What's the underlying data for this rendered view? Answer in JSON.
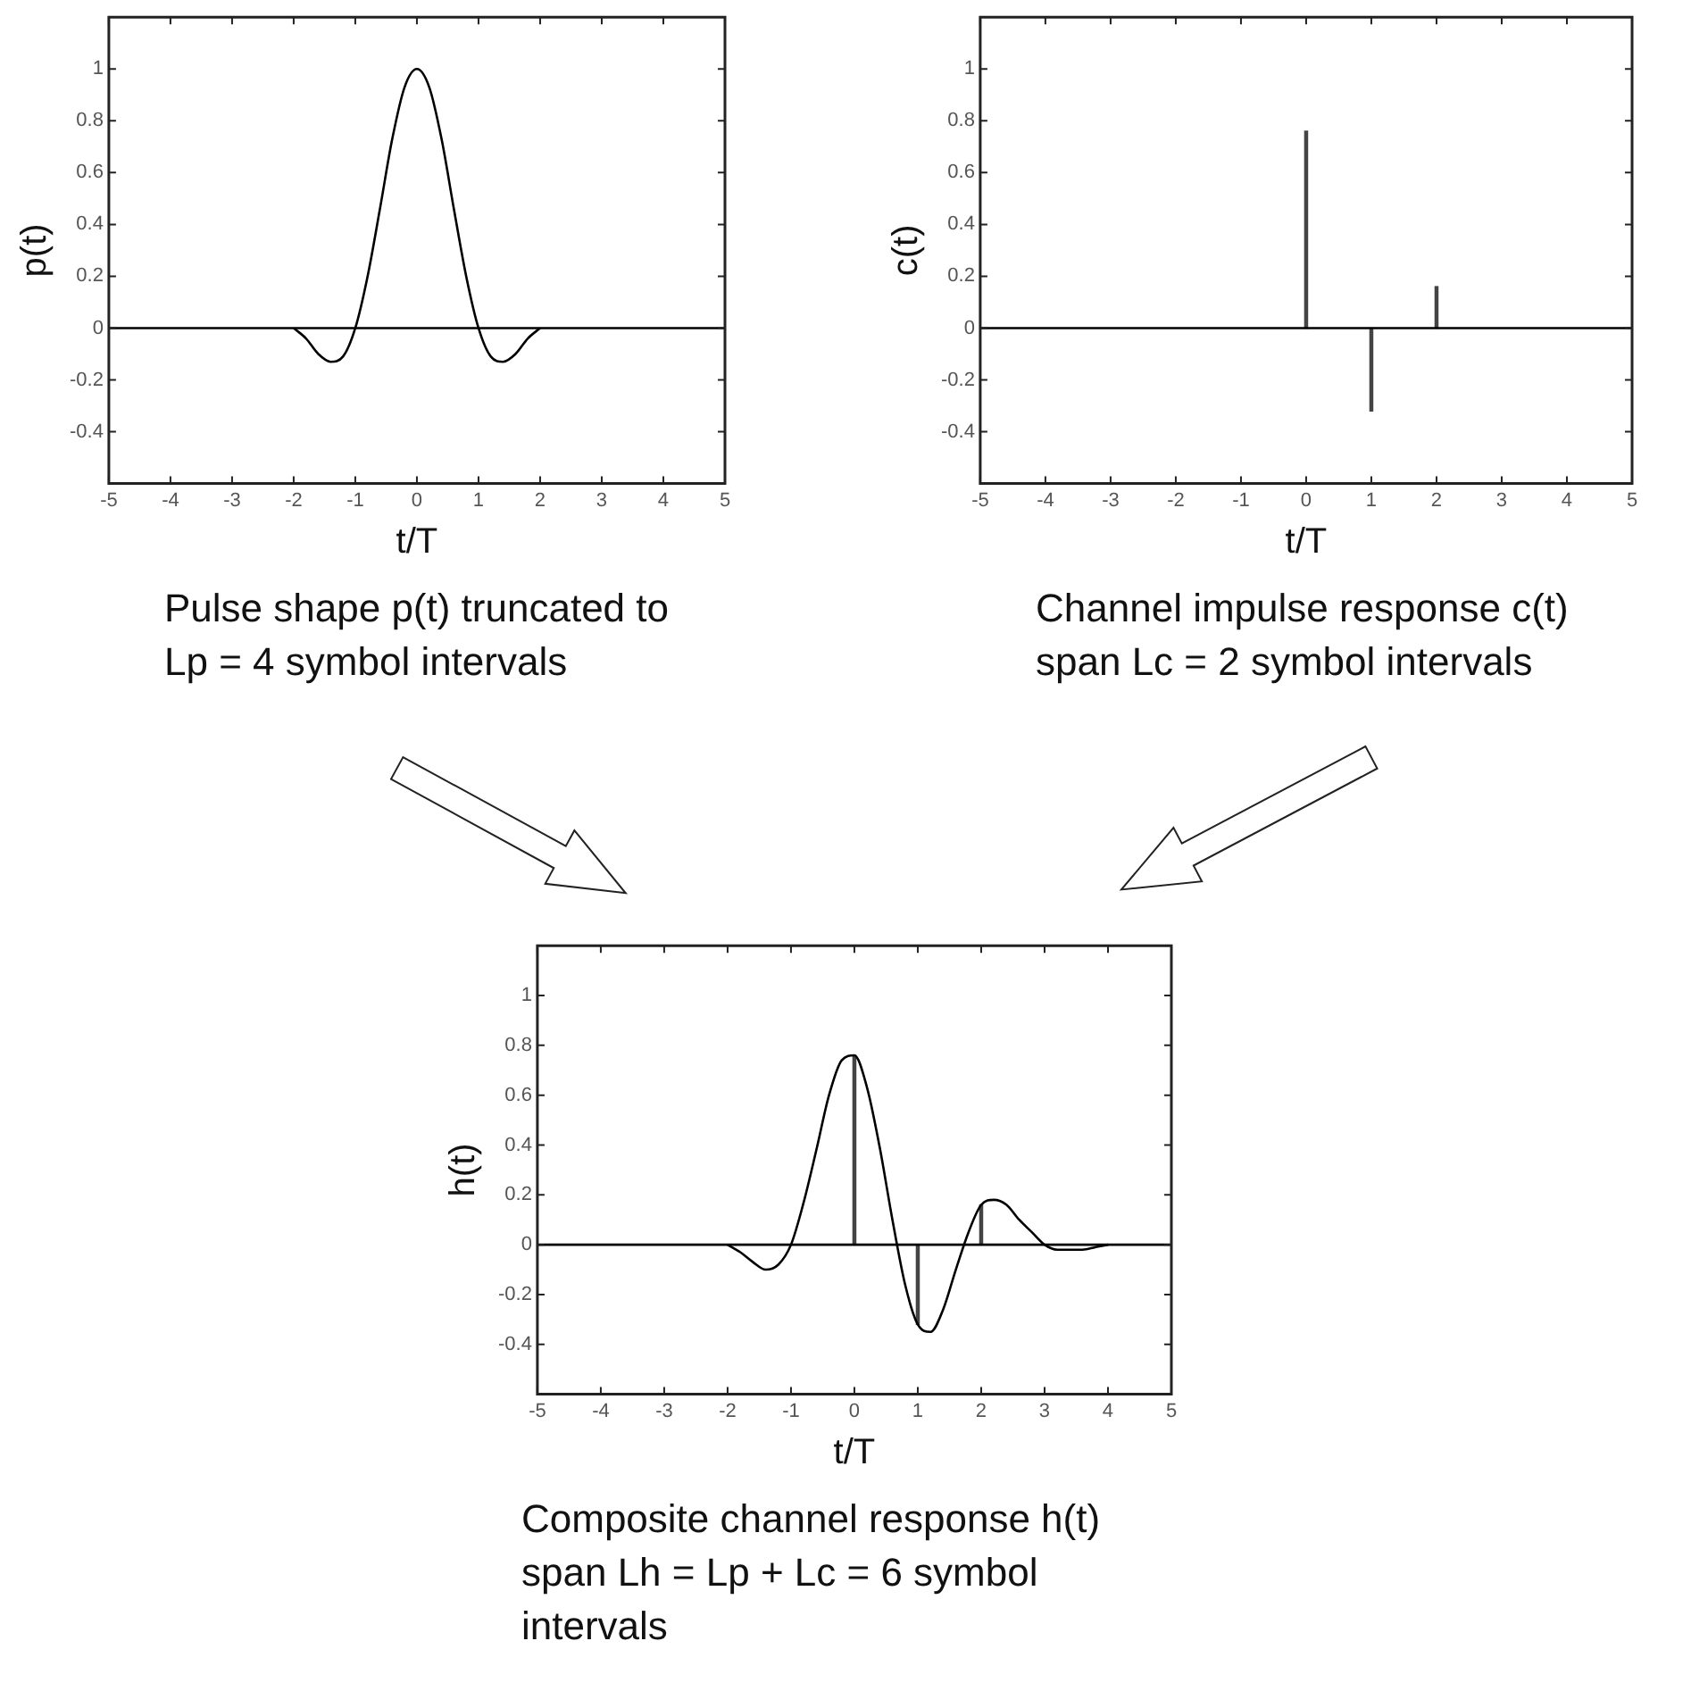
{
  "chart_data": [
    {
      "type": "line",
      "xlabel": "t/T",
      "ylabel": "p(t)",
      "xlim": [
        -5,
        5
      ],
      "xticks": [
        -5,
        -4,
        -3,
        -2,
        -1,
        0,
        1,
        2,
        3,
        4,
        5
      ],
      "ylim": [
        -0.6,
        1.2
      ],
      "yticks": [
        -0.4,
        -0.2,
        0,
        0.2,
        0.4,
        0.6,
        0.8,
        1
      ],
      "grid": false,
      "legend": false,
      "marker": "none",
      "series": [
        {
          "color": "#000000",
          "x": [
            -2,
            -1.8,
            -1.6,
            -1.4,
            -1.2,
            -1,
            -0.8,
            -0.6,
            -0.4,
            -0.2,
            0,
            0.2,
            0.4,
            0.6,
            0.8,
            1,
            1.2,
            1.4,
            1.6,
            1.8,
            2
          ],
          "values": [
            0,
            -0.04,
            -0.1,
            -0.13,
            -0.11,
            0,
            0.2,
            0.46,
            0.73,
            0.93,
            1,
            0.93,
            0.73,
            0.46,
            0.2,
            0,
            -0.11,
            -0.13,
            -0.1,
            -0.04,
            0
          ]
        }
      ],
      "ref_lines": [
        {
          "axis": "y",
          "value": 0,
          "color": "#000000"
        }
      ],
      "annotations": [
        "Pulse shape p(t) truncated to Lp = 4 symbol intervals"
      ]
    },
    {
      "type": "bar",
      "xlabel": "t/T",
      "ylabel": "c(t)",
      "xlim": [
        -5,
        5
      ],
      "xticks": [
        -5,
        -4,
        -3,
        -2,
        -1,
        0,
        1,
        2,
        3,
        4,
        5
      ],
      "ylim": [
        -0.6,
        1.2
      ],
      "yticks": [
        -0.4,
        -0.2,
        0,
        0.2,
        0.4,
        0.6,
        0.8,
        1
      ],
      "grid": false,
      "legend": false,
      "series": [
        {
          "color": "#444444",
          "x": [
            0,
            1,
            2
          ],
          "values": [
            0.76,
            -0.32,
            0.16
          ]
        }
      ],
      "ref_lines": [
        {
          "axis": "y",
          "value": 0,
          "color": "#000000"
        }
      ],
      "annotations": [
        "Channel impulse response c(t) span Lc = 2 symbol intervals"
      ]
    },
    {
      "type": "line",
      "xlabel": "t/T",
      "ylabel": "h(t)",
      "xlim": [
        -5,
        5
      ],
      "xticks": [
        -5,
        -4,
        -3,
        -2,
        -1,
        0,
        1,
        2,
        3,
        4,
        5
      ],
      "ylim": [
        -0.6,
        1.2
      ],
      "yticks": [
        -0.4,
        -0.2,
        0,
        0.2,
        0.4,
        0.6,
        0.8,
        1
      ],
      "grid": false,
      "legend": false,
      "marker": "none",
      "series": [
        {
          "color": "#000000",
          "x": [
            -2,
            -1.8,
            -1.6,
            -1.4,
            -1.2,
            -1,
            -0.8,
            -0.6,
            -0.4,
            -0.2,
            0,
            0.2,
            0.4,
            0.6,
            0.8,
            1,
            1.2,
            1.4,
            1.6,
            1.8,
            2,
            2.2,
            2.4,
            2.6,
            2.8,
            3,
            3.2,
            3.4,
            3.6,
            3.8,
            4
          ],
          "values": [
            0,
            -0.03,
            -0.07,
            -0.1,
            -0.08,
            0,
            0.17,
            0.38,
            0.6,
            0.74,
            0.76,
            0.63,
            0.39,
            0.1,
            -0.16,
            -0.32,
            -0.35,
            -0.26,
            -0.1,
            0.05,
            0.16,
            0.18,
            0.16,
            0.1,
            0.05,
            0,
            -0.02,
            -0.02,
            -0.02,
            -0.01,
            0
          ]
        },
        {
          "type": "bar",
          "color": "#444444",
          "x": [
            0,
            1,
            2
          ],
          "values": [
            0.76,
            -0.32,
            0.16
          ]
        }
      ],
      "ref_lines": [
        {
          "axis": "y",
          "value": 0,
          "color": "#000000"
        }
      ],
      "annotations": [
        "Composite channel response h(t) span Lh = Lp + Lc = 6 symbol intervals"
      ]
    }
  ]
}
